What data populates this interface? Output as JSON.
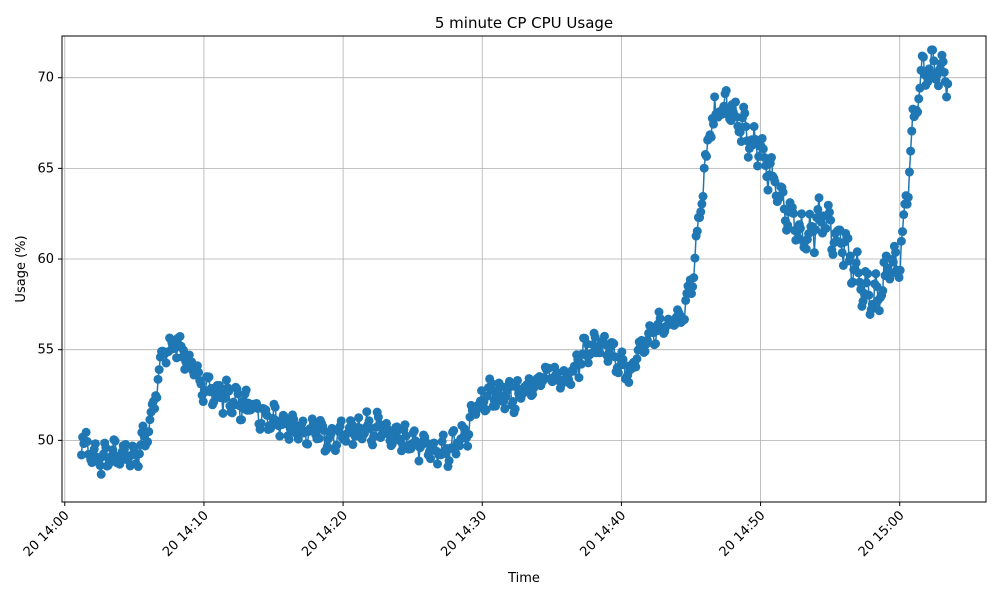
{
  "chart_data": {
    "type": "line",
    "title": "5 minute CP CPU Usage",
    "xlabel": "Time",
    "ylabel": "Usage (%)",
    "grid": true,
    "marker": "circle",
    "color": "#1f77b4",
    "x_axis": {
      "start": "20 14:01",
      "end": "20 15:04",
      "range": [
        "20 13:59:48",
        "20 15:06:12"
      ],
      "ticks": [
        {
          "label": "20 14:00",
          "minutes": 0
        },
        {
          "label": "20 14:10",
          "minutes": 10
        },
        {
          "label": "20 14:20",
          "minutes": 20
        },
        {
          "label": "20 14:30",
          "minutes": 30
        },
        {
          "label": "20 14:40",
          "minutes": 40
        },
        {
          "label": "20 14:50",
          "minutes": 50
        },
        {
          "label": "20 15:00",
          "minutes": 60
        }
      ]
    },
    "y_axis": {
      "range": [
        46.6,
        72.3
      ],
      "ticks": [
        50,
        55,
        60,
        65,
        70
      ]
    },
    "interval_seconds": 5,
    "anchors": [
      [
        1.2,
        50.2
      ],
      [
        2.0,
        49.0
      ],
      [
        3.0,
        48.9
      ],
      [
        4.0,
        49.3
      ],
      [
        5.0,
        49.1
      ],
      [
        5.7,
        50.0
      ],
      [
        6.3,
        51.5
      ],
      [
        7.0,
        54.6
      ],
      [
        7.6,
        55.2
      ],
      [
        8.3,
        55.3
      ],
      [
        9.0,
        54.0
      ],
      [
        10.0,
        53.1
      ],
      [
        11.0,
        52.5
      ],
      [
        12.0,
        52.3
      ],
      [
        13.0,
        51.9
      ],
      [
        14.0,
        51.4
      ],
      [
        15.0,
        51.0
      ],
      [
        16.0,
        50.8
      ],
      [
        17.0,
        50.6
      ],
      [
        18.0,
        50.4
      ],
      [
        19.0,
        50.3
      ],
      [
        20.0,
        50.3
      ],
      [
        21.0,
        50.6
      ],
      [
        22.0,
        50.8
      ],
      [
        23.0,
        50.4
      ],
      [
        24.0,
        50.0
      ],
      [
        25.0,
        49.8
      ],
      [
        26.0,
        49.6
      ],
      [
        27.0,
        49.3
      ],
      [
        28.0,
        49.8
      ],
      [
        29.0,
        50.5
      ],
      [
        29.6,
        51.9
      ],
      [
        30.5,
        52.6
      ],
      [
        31.5,
        52.3
      ],
      [
        32.5,
        52.4
      ],
      [
        33.5,
        53.2
      ],
      [
        34.5,
        53.5
      ],
      [
        35.5,
        53.4
      ],
      [
        36.5,
        53.9
      ],
      [
        37.5,
        55.0
      ],
      [
        38.5,
        55.3
      ],
      [
        39.5,
        54.5
      ],
      [
        40.5,
        53.6
      ],
      [
        41.0,
        54.4
      ],
      [
        42.0,
        55.8
      ],
      [
        43.0,
        56.3
      ],
      [
        44.0,
        56.8
      ],
      [
        44.6,
        57.4
      ],
      [
        45.0,
        58.8
      ],
      [
        45.5,
        61.5
      ],
      [
        46.0,
        64.8
      ],
      [
        46.5,
        67.6
      ],
      [
        47.0,
        68.1
      ],
      [
        47.5,
        68.4
      ],
      [
        48.0,
        68.0
      ],
      [
        48.5,
        67.4
      ],
      [
        49.0,
        66.8
      ],
      [
        49.5,
        66.2
      ],
      [
        50.2,
        65.8
      ],
      [
        50.8,
        64.5
      ],
      [
        51.3,
        64.0
      ],
      [
        52.0,
        62.0
      ],
      [
        52.5,
        61.9
      ],
      [
        53.0,
        61.5
      ],
      [
        53.5,
        61.4
      ],
      [
        54.0,
        61.8
      ],
      [
        54.5,
        62.5
      ],
      [
        55.0,
        61.6
      ],
      [
        55.5,
        61.2
      ],
      [
        56.0,
        60.7
      ],
      [
        56.5,
        59.8
      ],
      [
        57.0,
        59.0
      ],
      [
        57.5,
        58.3
      ],
      [
        58.0,
        57.9
      ],
      [
        58.5,
        58.2
      ],
      [
        59.0,
        59.1
      ],
      [
        59.5,
        59.6
      ],
      [
        60.0,
        60.3
      ],
      [
        60.5,
        63.5
      ],
      [
        61.0,
        67.5
      ],
      [
        61.5,
        70.0
      ],
      [
        62.0,
        70.1
      ],
      [
        62.5,
        70.4
      ],
      [
        63.0,
        70.2
      ],
      [
        63.5,
        70.3
      ]
    ],
    "noise_amplitude": 0.75,
    "noise_seed": 7
  }
}
